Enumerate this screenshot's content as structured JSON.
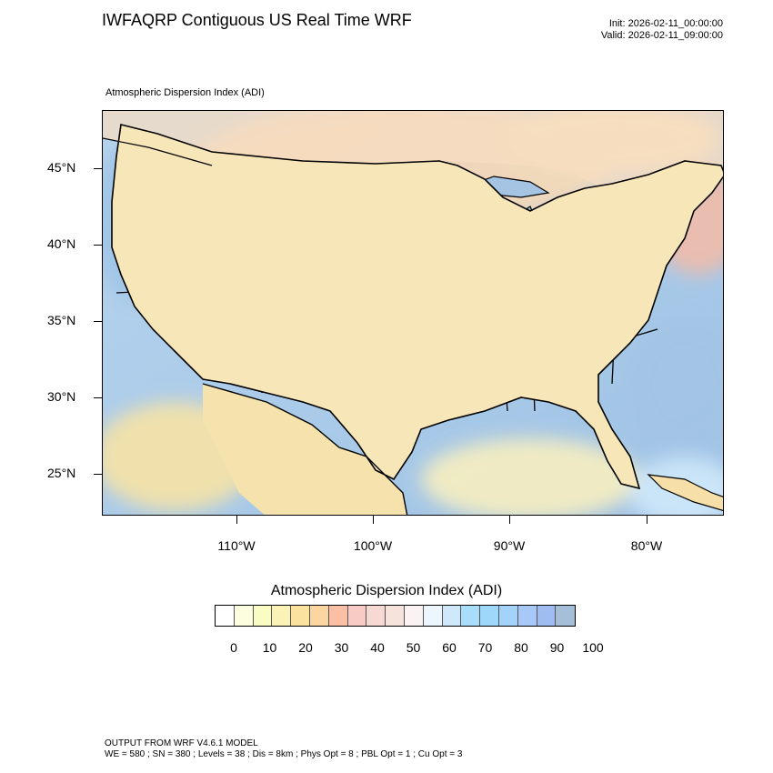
{
  "header": {
    "title": "IWFAQRP Contiguous US Real Time WRF",
    "init": "Init: 2026-02-11_00:00:00",
    "valid": "Valid: 2026-02-11_09:00:00"
  },
  "map": {
    "subtitle": "Atmospheric Dispersion Index   (ADI)",
    "lat_labels": [
      "45°N",
      "40°N",
      "35°N",
      "30°N",
      "25°N"
    ],
    "lon_labels": [
      "110°W",
      "100°W",
      "90°W",
      "80°W"
    ],
    "water_color": "#9ec3e6",
    "ocean_deep_color": "#a8c8e8"
  },
  "legend": {
    "title": "Atmospheric Dispersion Index  (ADI)",
    "tick_labels": [
      "0",
      "10",
      "20",
      "30",
      "40",
      "50",
      "60",
      "70",
      "80",
      "90",
      "100"
    ],
    "colors": [
      "#ffffff",
      "#fdfde0",
      "#fbfbc4",
      "#fbf2b5",
      "#fbe29f",
      "#fcd6a0",
      "#fbbfa6",
      "#f8cbc5",
      "#f6d9d3",
      "#f6e3dc",
      "#fbf3f3",
      "#eef6fd",
      "#cfe9fb",
      "#a9defb",
      "#9dd7f9",
      "#a3d2fa",
      "#a8c8f8",
      "#9fbdf0",
      "#a5bfd8"
    ]
  },
  "footer": {
    "line1": "OUTPUT FROM WRF V4.6.1 MODEL",
    "line2": "WE = 580 ; SN = 380 ; Levels = 38 ; Dis = 8km ; Phys Opt = 8 ; PBL Opt = 1 ; Cu Opt = 3"
  }
}
